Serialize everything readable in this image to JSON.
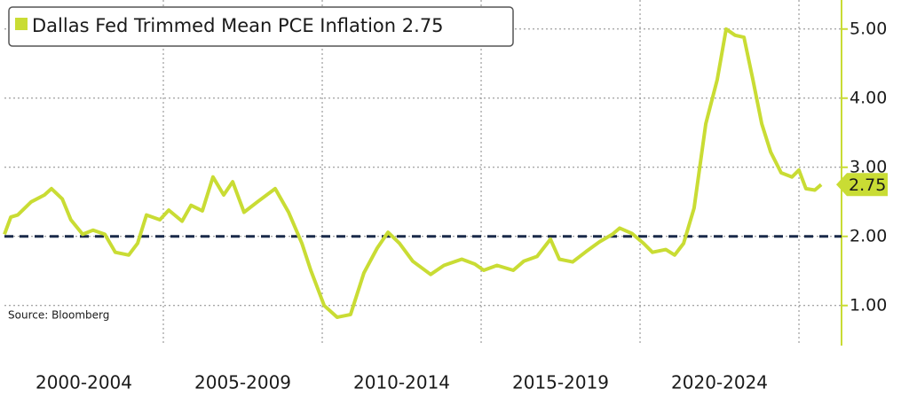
{
  "chart_data": {
    "type": "line",
    "legend_label_series": 0,
    "source": "Source: Bloomberg",
    "x": [
      2000.0,
      2000.2,
      2000.42,
      2000.84,
      2001.26,
      2001.48,
      2001.82,
      2002.09,
      2002.46,
      2002.79,
      2003.16,
      2003.49,
      2003.91,
      2004.19,
      2004.47,
      2004.89,
      2005.17,
      2005.59,
      2005.87,
      2006.23,
      2006.56,
      2006.9,
      2007.18,
      2007.54,
      2007.96,
      2008.52,
      2008.94,
      2009.36,
      2009.64,
      2010.06,
      2010.47,
      2010.89,
      2011.31,
      2011.73,
      2012.07,
      2012.43,
      2012.85,
      2013.41,
      2013.83,
      2014.39,
      2014.8,
      2015.08,
      2015.5,
      2016.01,
      2016.34,
      2016.76,
      2017.18,
      2017.46,
      2017.88,
      2018.3,
      2018.72,
      2019.13,
      2019.36,
      2019.75,
      2020.11,
      2020.39,
      2020.81,
      2021.09,
      2021.37,
      2021.7,
      2022.07,
      2022.43,
      2022.71,
      2022.99,
      2023.27,
      2023.55,
      2023.83,
      2024.11,
      2024.44,
      2024.78,
      2025.0,
      2025.22,
      2025.5,
      2025.7
    ],
    "series": [
      {
        "name": "Dallas Fed Trimmed Mean PCE Inflation",
        "color": "#c9dc34",
        "values": [
          2.03,
          2.28,
          2.31,
          2.5,
          2.6,
          2.69,
          2.54,
          2.24,
          2.03,
          2.09,
          2.03,
          1.77,
          1.73,
          1.9,
          2.31,
          2.24,
          2.38,
          2.22,
          2.45,
          2.37,
          2.86,
          2.6,
          2.79,
          2.35,
          2.5,
          2.69,
          2.35,
          1.9,
          1.51,
          1.0,
          0.83,
          0.87,
          1.47,
          1.83,
          2.06,
          1.9,
          1.64,
          1.45,
          1.58,
          1.67,
          1.6,
          1.51,
          1.58,
          1.51,
          1.64,
          1.71,
          1.96,
          1.67,
          1.63,
          1.78,
          1.92,
          2.03,
          2.12,
          2.04,
          1.9,
          1.77,
          1.81,
          1.73,
          1.9,
          2.41,
          3.63,
          4.27,
          5.0,
          4.91,
          4.88,
          4.27,
          3.63,
          3.22,
          2.92,
          2.86,
          2.96,
          2.69,
          2.67,
          2.75
        ]
      }
    ],
    "xlim": [
      2000,
      2026.34
    ],
    "xticks": [
      2005,
      2010,
      2015,
      2020,
      2025
    ],
    "period_labels": [
      "2000-2004",
      "2005-2009",
      "2010-2014",
      "2015-2019",
      "2020-2024"
    ],
    "ylim": [
      0.42,
      5.42
    ],
    "yticks": [
      {
        "value": 1,
        "label": "1.00"
      },
      {
        "value": 2,
        "label": "2.00"
      },
      {
        "value": 3,
        "label": "3.00"
      },
      {
        "value": 4,
        "label": "4.00"
      },
      {
        "value": 5,
        "label": "5.00"
      }
    ],
    "reference_line": 2,
    "reference_color": "#1a2a4a",
    "grid": true
  }
}
